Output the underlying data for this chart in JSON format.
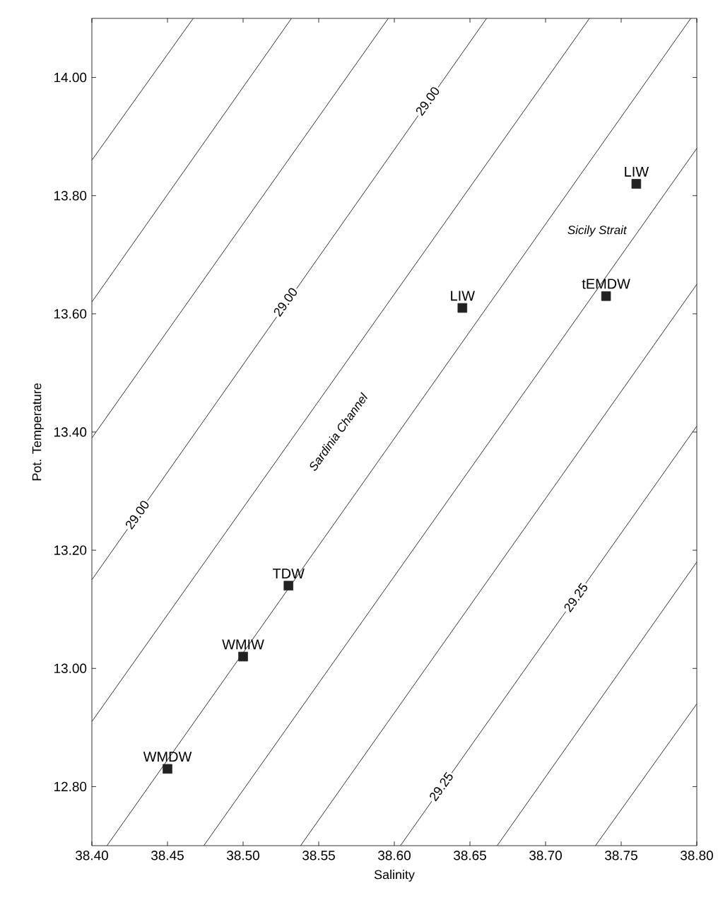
{
  "chart_data": {
    "type": "scatter",
    "xlabel": "Salinity",
    "ylabel": "Pot. Temperature",
    "xlim": [
      38.4,
      38.8
    ],
    "ylim": [
      12.7,
      14.1
    ],
    "xticks": [
      {
        "value": 38.4,
        "label": "38.40"
      },
      {
        "value": 38.45,
        "label": "38.45"
      },
      {
        "value": 38.5,
        "label": "38.50"
      },
      {
        "value": 38.55,
        "label": "38.55"
      },
      {
        "value": 38.6,
        "label": "38.60"
      },
      {
        "value": 38.65,
        "label": "38.65"
      },
      {
        "value": 38.7,
        "label": "38.70"
      },
      {
        "value": 38.75,
        "label": "38.75"
      },
      {
        "value": 38.8,
        "label": "38.80"
      }
    ],
    "yticks": [
      {
        "value": 12.8,
        "label": "12.80"
      },
      {
        "value": 13.0,
        "label": "13.00"
      },
      {
        "value": 13.2,
        "label": "13.20"
      },
      {
        "value": 13.4,
        "label": "13.40"
      },
      {
        "value": 13.6,
        "label": "13.60"
      },
      {
        "value": 13.8,
        "label": "13.80"
      },
      {
        "value": 14.0,
        "label": "14.00"
      }
    ],
    "grid": false,
    "series": [
      {
        "marker": "square",
        "color": "#222222",
        "x": [
          38.45,
          38.5,
          38.53,
          38.645,
          38.74,
          38.76
        ],
        "values": [
          12.83,
          13.02,
          13.14,
          13.61,
          13.63,
          13.82
        ]
      },
      {
        "type": "line",
        "color": "#333333",
        "x": [
          38.4,
          38.467
        ],
        "values": [
          13.86,
          14.1
        ]
      },
      {
        "type": "line",
        "color": "#333333",
        "x": [
          38.4,
          38.532
        ],
        "values": [
          13.62,
          14.1
        ]
      },
      {
        "type": "line",
        "color": "#333333",
        "x": [
          38.4,
          38.596
        ],
        "values": [
          13.39,
          14.1
        ]
      },
      {
        "type": "line",
        "color": "#333333",
        "x": [
          38.4,
          38.661
        ],
        "values": [
          13.15,
          14.1
        ]
      },
      {
        "type": "line",
        "color": "#333333",
        "x": [
          38.4,
          38.729
        ],
        "values": [
          12.91,
          14.1
        ]
      },
      {
        "type": "line",
        "color": "#333333",
        "x": [
          38.41,
          38.796
        ],
        "values": [
          12.7,
          14.1
        ]
      },
      {
        "type": "line",
        "color": "#333333",
        "x": [
          38.474,
          38.8
        ],
        "values": [
          12.7,
          13.88
        ]
      },
      {
        "type": "line",
        "color": "#333333",
        "x": [
          38.538,
          38.8
        ],
        "values": [
          12.7,
          13.65
        ]
      },
      {
        "type": "line",
        "color": "#333333",
        "x": [
          38.604,
          38.8
        ],
        "values": [
          12.7,
          13.41
        ]
      },
      {
        "type": "line",
        "color": "#333333",
        "x": [
          38.668,
          38.8
        ],
        "values": [
          12.7,
          13.18
        ]
      },
      {
        "type": "line",
        "color": "#333333",
        "x": [
          38.733,
          38.8
        ],
        "values": [
          12.7,
          12.94
        ]
      }
    ],
    "annotations": [
      {
        "text": "29.00",
        "x": 38.622,
        "y": 13.96
      },
      {
        "text": "29.00",
        "x": 38.528,
        "y": 13.62
      },
      {
        "text": "29.00",
        "x": 38.43,
        "y": 13.26
      },
      {
        "text": "29.25",
        "x": 38.72,
        "y": 13.12
      },
      {
        "text": "29.25",
        "x": 38.631,
        "y": 12.8
      },
      "Sardinia Channel",
      "Sicily Strait",
      {
        "text": "WMDW",
        "x": 38.45,
        "y": 12.83
      },
      {
        "text": "WMIW",
        "x": 38.5,
        "y": 13.02
      },
      {
        "text": "TDW",
        "x": 38.53,
        "y": 13.14
      },
      {
        "text": "LIW",
        "x": 38.645,
        "y": 13.61
      },
      {
        "text": "tEMDW",
        "x": 38.74,
        "y": 13.63
      },
      {
        "text": "LIW",
        "x": 38.76,
        "y": 13.82
      }
    ]
  }
}
